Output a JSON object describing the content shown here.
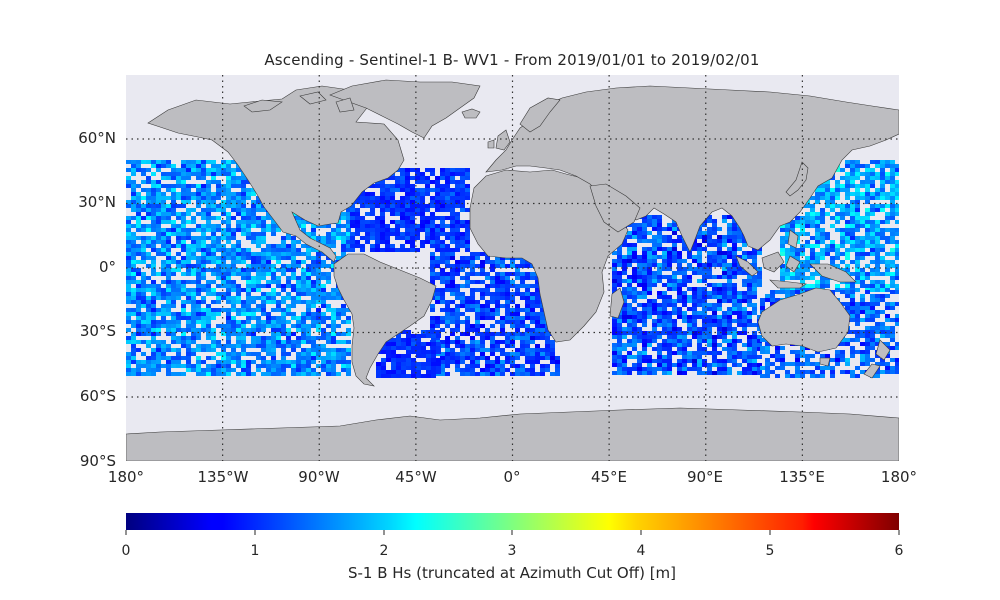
{
  "title": "Ascending - Sentinel-1 B- WV1 - From 2019/01/01 to 2019/02/01",
  "map": {
    "lat_ticks": [
      "60°N",
      "30°N",
      "0°",
      "30°S",
      "60°S",
      "90°S"
    ],
    "lon_ticks": [
      "180°",
      "135°W",
      "90°W",
      "45°W",
      "0°",
      "45°E",
      "90°E",
      "135°E",
      "180°"
    ],
    "gridlines": "dotted",
    "colors": {
      "ocean": "#e9e9f1",
      "land": "#bdbdc1",
      "coast": "#333333",
      "grid": "#333333"
    }
  },
  "colorbar": {
    "label": "S-1 B Hs (truncated at Azimuth Cut Off) [m]",
    "ticks": [
      "0",
      "1",
      "2",
      "3",
      "4",
      "5",
      "6"
    ],
    "colormap": "jet",
    "range": [
      0,
      6
    ]
  }
}
